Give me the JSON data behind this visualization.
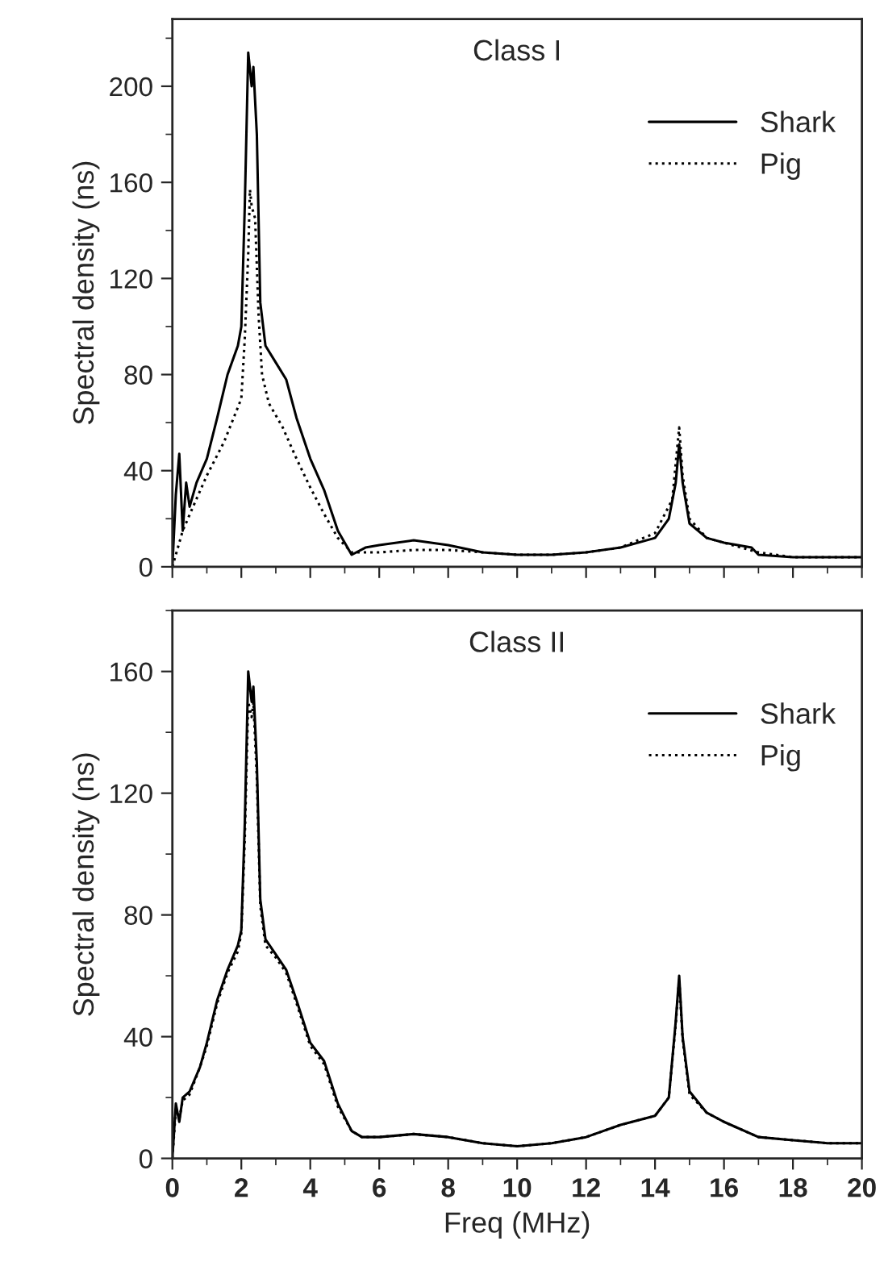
{
  "chart_data": [
    {
      "type": "line",
      "title": "Class I",
      "ylabel": "Spectral density (ns)",
      "xlim": [
        0,
        20
      ],
      "xticks": [
        0,
        2,
        4,
        6,
        8,
        10,
        12,
        14,
        16,
        18,
        20
      ],
      "ylim": [
        0,
        228
      ],
      "yticks": [
        0,
        40,
        80,
        120,
        160,
        200
      ],
      "tick_labels": "y",
      "legend": "top right",
      "grid": false,
      "series": [
        {
          "name": "Shark",
          "color": "#000000",
          "line_style": "solid",
          "x": [
            0,
            0.1,
            0.2,
            0.3,
            0.4,
            0.5,
            0.7,
            1.0,
            1.3,
            1.6,
            1.9,
            2.0,
            2.1,
            2.2,
            2.3,
            2.35,
            2.45,
            2.55,
            2.7,
            3.0,
            3.3,
            3.6,
            4.0,
            4.4,
            4.8,
            5.2,
            5.6,
            6.0,
            7.0,
            8.0,
            9.0,
            10,
            11,
            12,
            13,
            14,
            14.4,
            14.6,
            14.7,
            14.8,
            15.0,
            15.5,
            16,
            16.8,
            17,
            18,
            19,
            20
          ],
          "values": [
            0,
            30,
            47,
            15,
            35,
            25,
            35,
            45,
            62,
            80,
            92,
            100,
            150,
            214,
            200,
            208,
            180,
            110,
            92,
            85,
            78,
            62,
            45,
            32,
            15,
            5,
            8,
            9,
            11,
            9,
            6,
            5,
            5,
            6,
            8,
            12,
            20,
            35,
            51,
            35,
            18,
            12,
            10,
            8,
            5,
            4,
            4,
            4
          ]
        },
        {
          "name": "Pig",
          "color": "#000000",
          "line_style": "dotted",
          "x": [
            0,
            0.3,
            0.6,
            1.0,
            1.5,
            2.0,
            2.1,
            2.2,
            2.25,
            2.3,
            2.4,
            2.5,
            2.6,
            2.8,
            3.2,
            3.6,
            4.0,
            4.4,
            4.8,
            5.2,
            6,
            7,
            8,
            9,
            10,
            11,
            12,
            13,
            14,
            14.5,
            14.7,
            14.8,
            15,
            15.5,
            16,
            17,
            18,
            20
          ],
          "values": [
            0,
            15,
            25,
            38,
            52,
            70,
            95,
            130,
            157,
            150,
            145,
            105,
            80,
            68,
            58,
            45,
            33,
            22,
            12,
            6,
            6,
            7,
            7,
            6,
            5,
            5,
            6,
            8,
            14,
            28,
            58,
            38,
            20,
            12,
            10,
            6,
            4,
            4
          ]
        }
      ]
    },
    {
      "type": "line",
      "title": "Class II",
      "xlabel": "Freq (MHz)",
      "ylabel": "Spectral density (ns)",
      "xlim": [
        0,
        20
      ],
      "xticks": [
        0,
        2,
        4,
        6,
        8,
        10,
        12,
        14,
        16,
        18,
        20
      ],
      "ylim": [
        0,
        180
      ],
      "yticks": [
        0,
        40,
        80,
        120,
        160
      ],
      "legend": "top right",
      "grid": false,
      "series": [
        {
          "name": "Shark",
          "color": "#000000",
          "line_style": "solid",
          "x": [
            0,
            0.1,
            0.2,
            0.3,
            0.5,
            0.8,
            1.0,
            1.3,
            1.6,
            1.9,
            2.0,
            2.1,
            2.2,
            2.3,
            2.35,
            2.45,
            2.55,
            2.7,
            3.0,
            3.3,
            3.6,
            4.0,
            4.4,
            4.8,
            5.2,
            5.5,
            6,
            7,
            8,
            9,
            10,
            11,
            12,
            13,
            14,
            14.4,
            14.6,
            14.7,
            14.8,
            15,
            15.5,
            16,
            17,
            18,
            19,
            20
          ],
          "values": [
            0,
            18,
            12,
            20,
            22,
            30,
            38,
            52,
            62,
            70,
            75,
            110,
            160,
            150,
            155,
            130,
            85,
            72,
            67,
            62,
            52,
            38,
            32,
            18,
            9,
            7,
            7,
            8,
            7,
            5,
            4,
            5,
            7,
            11,
            14,
            20,
            45,
            60,
            40,
            22,
            15,
            12,
            7,
            6,
            5,
            5
          ]
        },
        {
          "name": "Pig",
          "color": "#000000",
          "line_style": "dotted",
          "x": [
            0,
            0.1,
            0.2,
            0.3,
            0.5,
            0.8,
            1.0,
            1.3,
            1.6,
            1.9,
            2.0,
            2.1,
            2.2,
            2.3,
            2.35,
            2.45,
            2.55,
            2.7,
            3.0,
            3.3,
            3.6,
            4.0,
            4.4,
            4.8,
            5.2,
            5.5,
            6,
            7,
            8,
            9,
            10,
            11,
            12,
            13,
            14,
            14.4,
            14.6,
            14.7,
            14.8,
            15,
            15.5,
            16,
            17,
            18,
            19,
            20
          ],
          "values": [
            0,
            16,
            13,
            19,
            21,
            30,
            37,
            51,
            61,
            68,
            74,
            105,
            150,
            145,
            150,
            125,
            83,
            70,
            66,
            61,
            51,
            37,
            31,
            17,
            9,
            7,
            7,
            8,
            7,
            5,
            4,
            5,
            7,
            11,
            14,
            20,
            44,
            59,
            39,
            21,
            15,
            12,
            7,
            6,
            5,
            5
          ]
        }
      ]
    }
  ]
}
